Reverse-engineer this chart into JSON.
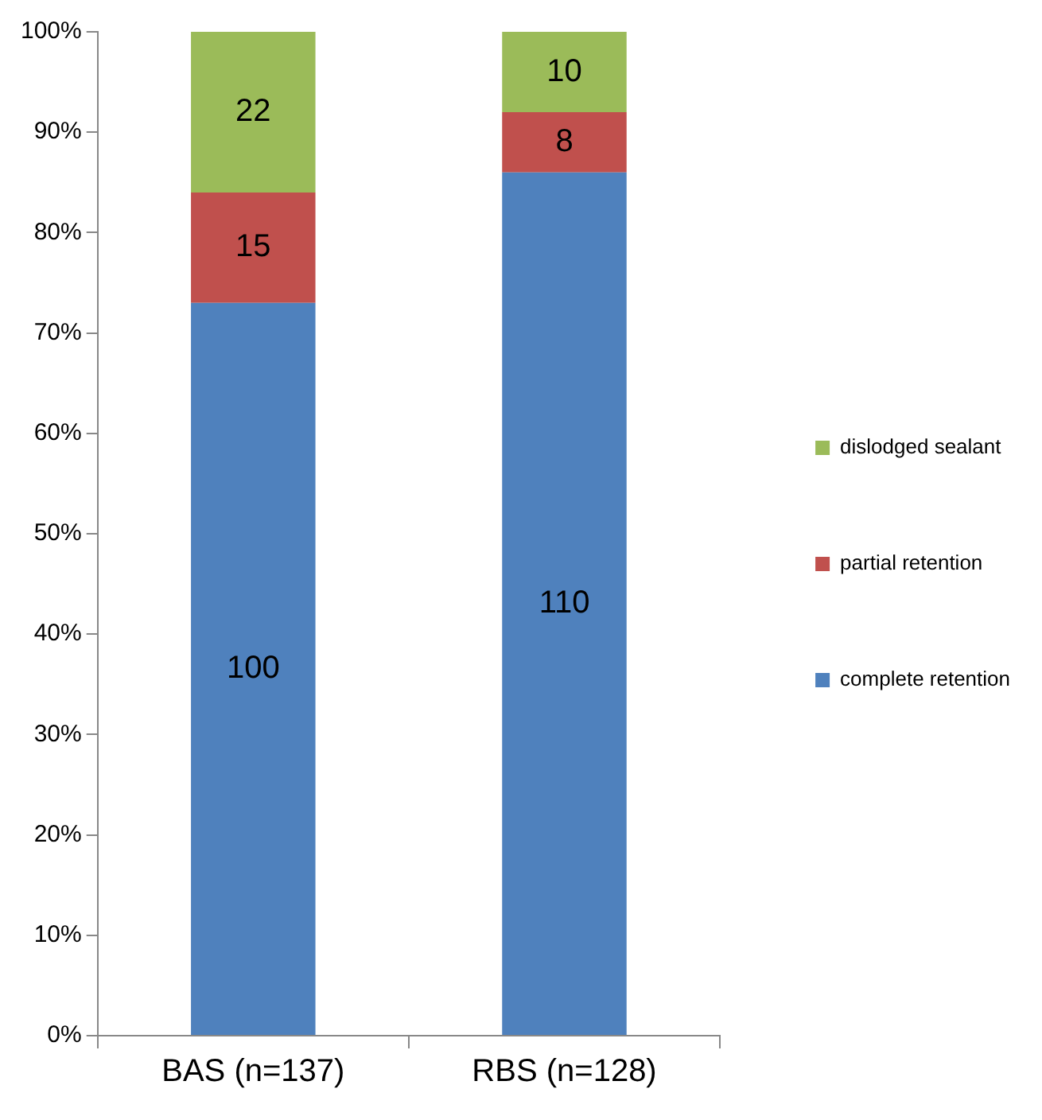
{
  "chart_data": {
    "type": "bar",
    "stacked": true,
    "categories": [
      "BAS (n=137)",
      "RBS (n=128)"
    ],
    "series": [
      {
        "name": "complete retention",
        "color": "#4f81bd",
        "values": [
          73,
          86
        ]
      },
      {
        "name": "partial retention",
        "color": "#c0504d",
        "values": [
          11,
          6
        ]
      },
      {
        "name": "dislodged sealant",
        "color": "#9bbb59",
        "values": [
          16,
          8
        ]
      }
    ],
    "annotations": [
      "100",
      "110",
      "15",
      "8",
      "22",
      "10"
    ],
    "ylim": [
      0,
      100
    ],
    "yticks": [
      {
        "value": 0,
        "label": "0%"
      },
      {
        "value": 10,
        "label": "10%"
      },
      {
        "value": 20,
        "label": "20%"
      },
      {
        "value": 30,
        "label": "30%"
      },
      {
        "value": 40,
        "label": "40%"
      },
      {
        "value": 50,
        "label": "50%"
      },
      {
        "value": 60,
        "label": "60%"
      },
      {
        "value": 70,
        "label": "70%"
      },
      {
        "value": 80,
        "label": "80%"
      },
      {
        "value": 90,
        "label": "90%"
      },
      {
        "value": 100,
        "label": "100%"
      }
    ],
    "grid": false,
    "legend": "right"
  }
}
